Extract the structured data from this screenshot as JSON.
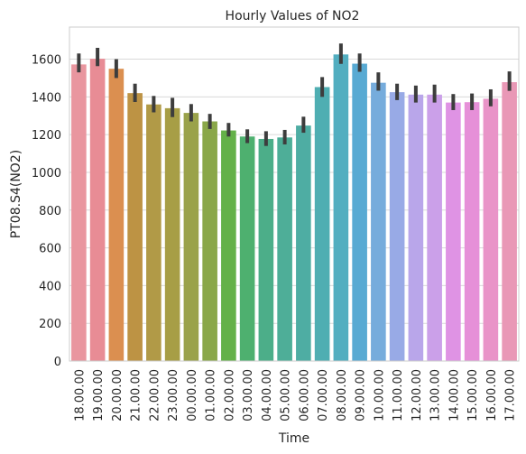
{
  "chart_data": {
    "type": "bar",
    "title": "Hourly Values of NO2",
    "xlabel": "Time",
    "ylabel": "PT08.S4(NO2)",
    "ylim": [
      0,
      1770
    ],
    "yticks": [
      0,
      200,
      400,
      600,
      800,
      1000,
      1200,
      1400,
      1600
    ],
    "grid": "horizontal",
    "categories": [
      "18.00.00",
      "19.00.00",
      "20.00.00",
      "21.00.00",
      "22.00.00",
      "23.00.00",
      "00.00.00",
      "01.00.00",
      "02.00.00",
      "03.00.00",
      "04.00.00",
      "05.00.00",
      "06.00.00",
      "07.00.00",
      "08.00.00",
      "09.00.00",
      "10.00.00",
      "11.00.00",
      "12.00.00",
      "13.00.00",
      "14.00.00",
      "15.00.00",
      "16.00.00",
      "17.00.00"
    ],
    "values": [
      1572,
      1602,
      1549,
      1420,
      1360,
      1340,
      1315,
      1270,
      1222,
      1190,
      1177,
      1185,
      1248,
      1452,
      1625,
      1576,
      1475,
      1425,
      1412,
      1412,
      1370,
      1372,
      1390,
      1478
    ],
    "error_low": [
      1530,
      1563,
      1500,
      1373,
      1318,
      1293,
      1270,
      1230,
      1190,
      1155,
      1140,
      1148,
      1210,
      1400,
      1575,
      1533,
      1433,
      1383,
      1370,
      1370,
      1330,
      1330,
      1350,
      1432
    ],
    "error_high": [
      1630,
      1660,
      1600,
      1470,
      1405,
      1395,
      1362,
      1310,
      1262,
      1228,
      1218,
      1225,
      1295,
      1505,
      1683,
      1630,
      1530,
      1470,
      1460,
      1465,
      1415,
      1418,
      1440,
      1535
    ],
    "colors": [
      "#e9969f",
      "#e88c95",
      "#db8f50",
      "#bd9344",
      "#b19a47",
      "#a79e46",
      "#9aa24a",
      "#8aa749",
      "#64b149",
      "#4eb06f",
      "#4cae89",
      "#4eae98",
      "#4eada3",
      "#4faeb2",
      "#52aec0",
      "#58aad3",
      "#76acdc",
      "#98aae6",
      "#b9a6ea",
      "#cba0e9",
      "#df93e4",
      "#e690d8",
      "#e994c8",
      "#e998b6"
    ]
  }
}
